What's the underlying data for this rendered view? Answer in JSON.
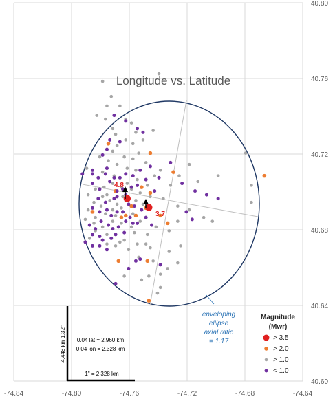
{
  "chart_data": {
    "type": "scatter",
    "title": "Longitude vs. Latitude",
    "xlabel": "",
    "ylabel": "",
    "xlim": [
      -74.84,
      -74.64
    ],
    "ylim": [
      40.6,
      40.8
    ],
    "x_ticks": [
      "-74.84",
      "-74.80",
      "-74.76",
      "-74.72",
      "-74.68",
      "-74.64"
    ],
    "y_ticks": [
      "40.60",
      "40.64",
      "40.68",
      "40.72",
      "40.76",
      "40.80"
    ],
    "grid": true,
    "legend_title": [
      "Magnitude",
      "(Mwr)"
    ],
    "legend_position": "bottom-right",
    "series": [
      {
        "name": "> 3.5",
        "color": "#e02020",
        "points": [
          [
            -74.7615,
            40.6965
          ],
          [
            -74.7465,
            40.6918
          ]
        ]
      },
      {
        "name": "> 2.0",
        "color": "#ed7d31",
        "points": [
          [
            -74.7745,
            40.7255
          ],
          [
            -74.7515,
            40.7025
          ],
          [
            -74.7455,
            40.6995
          ],
          [
            -74.7625,
            40.6875
          ],
          [
            -74.7485,
            40.6915
          ],
          [
            -74.7555,
            40.6875
          ],
          [
            -74.7655,
            40.6865
          ],
          [
            -74.7335,
            40.6835
          ],
          [
            -74.7385,
            40.6875
          ],
          [
            -74.7475,
            40.6635
          ],
          [
            -74.7675,
            40.6635
          ],
          [
            -74.7465,
            40.6425
          ],
          [
            -74.7455,
            40.7205
          ],
          [
            -74.7295,
            40.7105
          ],
          [
            -74.6665,
            40.7085
          ],
          [
            -74.7695,
            40.7005
          ],
          [
            -74.7585,
            40.6925
          ],
          [
            -74.7855,
            40.6895
          ]
        ]
      },
      {
        "name": "> 1.0",
        "color": "#a6a6a6",
        "points": [
          [
            -74.7395,
            40.7625
          ],
          [
            -74.7785,
            40.7585
          ],
          [
            -74.7725,
            40.7505
          ],
          [
            -74.7755,
            40.7455
          ],
          [
            -74.7665,
            40.7455
          ],
          [
            -74.7825,
            40.7405
          ],
          [
            -74.7765,
            40.7385
          ],
          [
            -74.7715,
            40.7335
          ],
          [
            -74.7625,
            40.7385
          ],
          [
            -74.7585,
            40.7365
          ],
          [
            -74.7555,
            40.7315
          ],
          [
            -74.7695,
            40.7305
          ],
          [
            -74.7625,
            40.7275
          ],
          [
            -74.7575,
            40.7255
          ],
          [
            -74.7505,
            40.7275
          ],
          [
            -74.7435,
            40.7325
          ],
          [
            -74.7685,
            40.7245
          ],
          [
            -74.7535,
            40.7205
          ],
          [
            -74.7575,
            40.7175
          ],
          [
            -74.7635,
            40.7185
          ],
          [
            -74.7715,
            40.7215
          ],
          [
            -74.7805,
            40.7185
          ],
          [
            -74.7745,
            40.7165
          ],
          [
            -74.7685,
            40.7145
          ],
          [
            -74.7615,
            40.7125
          ],
          [
            -74.7555,
            40.7115
          ],
          [
            -74.7485,
            40.7155
          ],
          [
            -74.7425,
            40.7085
          ],
          [
            -74.7385,
            40.7115
          ],
          [
            -74.7315,
            40.7035
          ],
          [
            -74.7255,
            40.7085
          ],
          [
            -74.7185,
            40.7145
          ],
          [
            -74.7125,
            40.7055
          ],
          [
            -74.6985,
            40.7085
          ],
          [
            -74.6795,
            40.7205
          ],
          [
            -74.6755,
            40.7035
          ],
          [
            -74.6755,
            40.6945
          ],
          [
            -74.7085,
            40.6865
          ],
          [
            -74.7025,
            40.6845
          ],
          [
            -74.7185,
            40.6905
          ],
          [
            -74.7265,
            40.6925
          ],
          [
            -74.7365,
            40.6965
          ],
          [
            -74.7455,
            40.6975
          ],
          [
            -74.7525,
            40.6995
          ],
          [
            -74.7585,
            40.7015
          ],
          [
            -74.7655,
            40.7025
          ],
          [
            -74.7715,
            40.7045
          ],
          [
            -74.7775,
            40.7025
          ],
          [
            -74.7835,
            40.7015
          ],
          [
            -74.7885,
            40.6985
          ],
          [
            -74.7845,
            40.6945
          ],
          [
            -74.7795,
            40.6925
          ],
          [
            -74.7735,
            40.6955
          ],
          [
            -74.7685,
            40.6935
          ],
          [
            -74.7625,
            40.6955
          ],
          [
            -74.7655,
            40.6915
          ],
          [
            -74.7715,
            40.6905
          ],
          [
            -74.7765,
            40.6885
          ],
          [
            -74.7835,
            40.6865
          ],
          [
            -74.7885,
            40.6905
          ],
          [
            -74.7905,
            40.6855
          ],
          [
            -74.7845,
            40.6835
          ],
          [
            -74.7785,
            40.6815
          ],
          [
            -74.7715,
            40.6845
          ],
          [
            -74.7655,
            40.6835
          ],
          [
            -74.7585,
            40.6815
          ],
          [
            -74.7525,
            40.6845
          ],
          [
            -74.7565,
            40.6785
          ],
          [
            -74.7475,
            40.6775
          ],
          [
            -74.7415,
            40.6815
          ],
          [
            -74.7325,
            40.6795
          ],
          [
            -74.7265,
            40.6845
          ],
          [
            -74.7755,
            40.6775
          ],
          [
            -74.7835,
            40.6795
          ],
          [
            -74.7875,
            40.6755
          ],
          [
            -74.7755,
            40.6725
          ],
          [
            -74.7695,
            40.6715
          ],
          [
            -74.7635,
            40.6745
          ],
          [
            -74.7545,
            40.6725
          ],
          [
            -74.7605,
            40.6695
          ],
          [
            -74.7535,
            40.6655
          ],
          [
            -74.7435,
            40.6635
          ],
          [
            -74.7325,
            40.6685
          ],
          [
            -74.7245,
            40.6715
          ],
          [
            -74.7335,
            40.6595
          ],
          [
            -74.7265,
            40.6625
          ],
          [
            -74.7385,
            40.6565
          ],
          [
            -74.7465,
            40.6555
          ],
          [
            -74.7635,
            40.6555
          ],
          [
            -74.7515,
            40.6535
          ],
          [
            -74.7385,
            40.6495
          ],
          [
            -74.7405,
            40.6465
          ],
          [
            -74.7665,
            40.6735
          ],
          [
            -74.7575,
            40.6885
          ],
          [
            -74.7695,
            40.6875
          ],
          [
            -74.7645,
            40.6975
          ],
          [
            -74.7555,
            40.6955
          ],
          [
            -74.7505,
            40.6935
          ],
          [
            -74.7785,
            40.6975
          ],
          [
            -74.7615,
            40.7045
          ],
          [
            -74.7545,
            40.7065
          ],
          [
            -74.7475,
            40.7035
          ],
          [
            -74.7705,
            40.7085
          ],
          [
            -74.7785,
            40.7105
          ],
          [
            -74.7755,
            40.6985
          ],
          [
            -74.7485,
            40.6725
          ],
          [
            -74.7455,
            40.6705
          ],
          [
            -74.7895,
            40.7125
          ]
        ]
      },
      {
        "name": "< 1.0",
        "color": "#7030a0",
        "points": [
          [
            -74.7705,
            40.7405
          ],
          [
            -74.7625,
            40.7375
          ],
          [
            -74.7545,
            40.7335
          ],
          [
            -74.7505,
            40.7315
          ],
          [
            -74.7735,
            40.7275
          ],
          [
            -74.7755,
            40.7225
          ],
          [
            -74.7785,
            40.7195
          ],
          [
            -74.7755,
            40.7125
          ],
          [
            -74.7855,
            40.7095
          ],
          [
            -74.7815,
            40.7075
          ],
          [
            -74.7765,
            40.7095
          ],
          [
            -74.7735,
            40.7055
          ],
          [
            -74.7705,
            40.7075
          ],
          [
            -74.7665,
            40.7075
          ],
          [
            -74.7625,
            40.7095
          ],
          [
            -74.7575,
            40.7085
          ],
          [
            -74.7525,
            40.7115
          ],
          [
            -74.7455,
            40.7135
          ],
          [
            -74.7395,
            40.7075
          ],
          [
            -74.7315,
            40.7155
          ],
          [
            -74.7235,
            40.7045
          ],
          [
            -74.7145,
            40.7005
          ],
          [
            -74.7065,
            40.6985
          ],
          [
            -74.6985,
            40.6965
          ],
          [
            -74.7855,
            40.7045
          ],
          [
            -74.7805,
            40.7015
          ],
          [
            -74.7685,
            40.7005
          ],
          [
            -74.7645,
            40.7015
          ],
          [
            -74.7585,
            40.7025
          ],
          [
            -74.7545,
            40.7035
          ],
          [
            -74.7485,
            40.7065
          ],
          [
            -74.7425,
            40.7005
          ],
          [
            -74.7815,
            40.6965
          ],
          [
            -74.7765,
            40.6945
          ],
          [
            -74.7705,
            40.6965
          ],
          [
            -74.7685,
            40.6975
          ],
          [
            -74.7625,
            40.6985
          ],
          [
            -74.7605,
            40.6935
          ],
          [
            -74.7565,
            40.6925
          ],
          [
            -74.7515,
            40.6905
          ],
          [
            -74.7855,
            40.6915
          ],
          [
            -74.7805,
            40.6895
          ],
          [
            -74.7755,
            40.6905
          ],
          [
            -74.7725,
            40.6875
          ],
          [
            -74.7685,
            40.6895
          ],
          [
            -74.7645,
            40.6895
          ],
          [
            -74.7595,
            40.6865
          ],
          [
            -74.7545,
            40.6835
          ],
          [
            -74.7875,
            40.6825
          ],
          [
            -74.7835,
            40.6805
          ],
          [
            -74.7795,
            40.6845
          ],
          [
            -74.7745,
            40.6825
          ],
          [
            -74.7715,
            40.6805
          ],
          [
            -74.7675,
            40.6815
          ],
          [
            -74.7625,
            40.6845
          ],
          [
            -74.7575,
            40.6835
          ],
          [
            -74.7855,
            40.6775
          ],
          [
            -74.7805,
            40.6765
          ],
          [
            -74.7785,
            40.6745
          ],
          [
            -74.7725,
            40.6755
          ],
          [
            -74.7695,
            40.6775
          ],
          [
            -74.7635,
            40.6785
          ],
          [
            -74.7905,
            40.6735
          ],
          [
            -74.7855,
            40.6715
          ],
          [
            -74.7805,
            40.6715
          ],
          [
            -74.7755,
            40.6695
          ],
          [
            -74.7555,
            40.6635
          ],
          [
            -74.7525,
            40.6645
          ],
          [
            -74.7605,
            40.6595
          ],
          [
            -74.7695,
            40.6515
          ],
          [
            -74.7855,
            40.7115
          ],
          [
            -74.7925,
            40.7095
          ],
          [
            -74.7665,
            40.7265
          ],
          [
            -74.7385,
            40.6615
          ],
          [
            -74.7205,
            40.6895
          ],
          [
            -74.7165,
            40.6855
          ],
          [
            -74.7485,
            40.6865
          ],
          [
            -74.7445,
            40.6825
          ]
        ]
      }
    ],
    "annotations": {
      "magnitude_labels": [
        {
          "text": "4.8",
          "at": [
            -74.7615,
            40.6965
          ]
        },
        {
          "text": "3.7",
          "at": [
            -74.7465,
            40.6918
          ]
        }
      ],
      "ellipse_label": [
        "enveloping",
        "ellipse",
        "axial ratio",
        "= 1.17"
      ],
      "scale_box": {
        "vertical_label": "4.448 km 1.32\"",
        "line1": "0.04 lat = 2.960 km",
        "line2": "0.04 lon = 2.328 km",
        "horizontal_label": "1\" = 2.328 km"
      }
    }
  }
}
